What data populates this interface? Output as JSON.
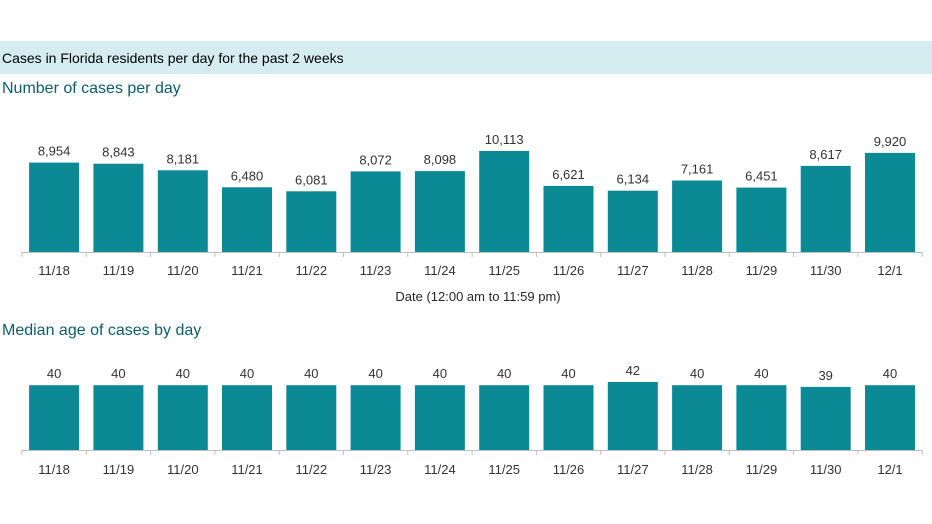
{
  "banner": {
    "title": "Cases in Florida residents per day for the past 2 weeks"
  },
  "colors": {
    "bar": "#0b8a96",
    "banner_bg": "#d5ecf0",
    "title": "#0b5e6b"
  },
  "chart_data": [
    {
      "type": "bar",
      "title": "Number of cases per day",
      "xlabel": "Date (12:00 am to 11:59 pm)",
      "ylabel": "",
      "categories": [
        "11/18",
        "11/19",
        "11/20",
        "11/21",
        "11/22",
        "11/23",
        "11/24",
        "11/25",
        "11/26",
        "11/27",
        "11/28",
        "11/29",
        "11/30",
        "12/1"
      ],
      "values": [
        8954,
        8843,
        8181,
        6480,
        6081,
        8072,
        8098,
        10113,
        6621,
        6134,
        7161,
        6451,
        8617,
        9920
      ],
      "value_labels": [
        "8,954",
        "8,843",
        "8,181",
        "6,480",
        "6,081",
        "8,072",
        "8,098",
        "10,113",
        "6,621",
        "6,134",
        "7,161",
        "6,451",
        "8,617",
        "9,920"
      ],
      "ylim": [
        0,
        10113
      ],
      "grid": false,
      "legend": "none"
    },
    {
      "type": "bar",
      "title": "Median age of cases by day",
      "xlabel": "",
      "ylabel": "",
      "categories": [
        "11/18",
        "11/19",
        "11/20",
        "11/21",
        "11/22",
        "11/23",
        "11/24",
        "11/25",
        "11/26",
        "11/27",
        "11/28",
        "11/29",
        "11/30",
        "12/1"
      ],
      "values": [
        40,
        40,
        40,
        40,
        40,
        40,
        40,
        40,
        40,
        42,
        40,
        40,
        39,
        40
      ],
      "value_labels": [
        "40",
        "40",
        "40",
        "40",
        "40",
        "40",
        "40",
        "40",
        "40",
        "42",
        "40",
        "40",
        "39",
        "40"
      ],
      "ylim": [
        0,
        42
      ],
      "grid": false,
      "legend": "none"
    }
  ]
}
